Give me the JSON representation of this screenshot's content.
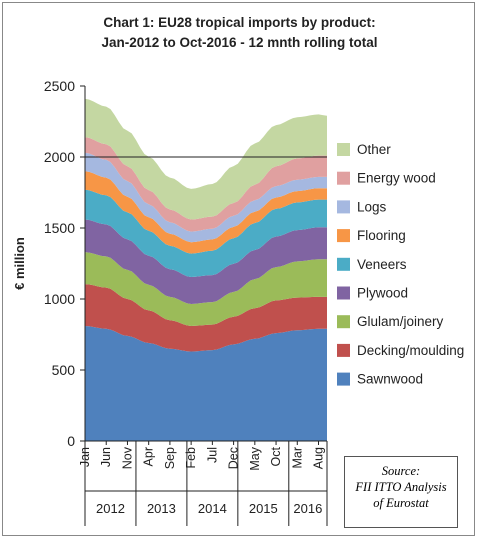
{
  "chart_data": {
    "type": "area",
    "stacked": true,
    "title_lines": [
      "Chart 1: EU28 tropical imports by product:",
      "Jan-2012 to Oct-2016 - 12 mnth rolling total"
    ],
    "ylabel": "€ million",
    "ylim": [
      0,
      2500
    ],
    "yticks": [
      0,
      500,
      1000,
      1500,
      2000,
      2500
    ],
    "x_tick_labels": [
      "Jan",
      "Jun",
      "Nov",
      "Apr",
      "Sep",
      "Feb",
      "Jul",
      "Dec",
      "May",
      "Oct",
      "Mar",
      "Aug"
    ],
    "x_tick_index": [
      0,
      5,
      10,
      15,
      20,
      25,
      30,
      35,
      40,
      45,
      50,
      55
    ],
    "year_groups": [
      {
        "label": "2012",
        "start": 0,
        "end": 12
      },
      {
        "label": "2013",
        "start": 12,
        "end": 24
      },
      {
        "label": "2014",
        "start": 24,
        "end": 36
      },
      {
        "label": "2015",
        "start": 36,
        "end": 48
      },
      {
        "label": "2016",
        "start": 48,
        "end": 58
      }
    ],
    "legend_position": "right",
    "colors": {
      "Sawnwood": "#4f81bd",
      "Decking/moulding": "#c0504d",
      "Glulam/joinery": "#9bbb59",
      "Plywood": "#8064a2",
      "Veneers": "#4bacc6",
      "Flooring": "#f79646",
      "Logs": "#a5b8e0",
      "Energy wood": "#e0a0a0",
      "Other": "#c4d7a2"
    },
    "series": [
      {
        "name": "Sawnwood",
        "knots": [
          [
            0,
            810
          ],
          [
            5,
            790
          ],
          [
            10,
            740
          ],
          [
            15,
            690
          ],
          [
            20,
            650
          ],
          [
            25,
            630
          ],
          [
            30,
            640
          ],
          [
            35,
            680
          ],
          [
            40,
            720
          ],
          [
            45,
            760
          ],
          [
            50,
            780
          ],
          [
            55,
            790
          ],
          [
            57,
            790
          ]
        ]
      },
      {
        "name": "Decking/moulding",
        "knots": [
          [
            0,
            295
          ],
          [
            5,
            290
          ],
          [
            10,
            260
          ],
          [
            15,
            230
          ],
          [
            20,
            200
          ],
          [
            25,
            180
          ],
          [
            30,
            180
          ],
          [
            35,
            195
          ],
          [
            40,
            215
          ],
          [
            45,
            230
          ],
          [
            50,
            230
          ],
          [
            55,
            225
          ],
          [
            57,
            225
          ]
        ]
      },
      {
        "name": "Glulam/joinery",
        "knots": [
          [
            0,
            225
          ],
          [
            5,
            220
          ],
          [
            10,
            205
          ],
          [
            15,
            180
          ],
          [
            20,
            165
          ],
          [
            25,
            155
          ],
          [
            30,
            158
          ],
          [
            35,
            175
          ],
          [
            40,
            205
          ],
          [
            45,
            235
          ],
          [
            50,
            255
          ],
          [
            55,
            265
          ],
          [
            57,
            265
          ]
        ]
      },
      {
        "name": "Plywood",
        "knots": [
          [
            0,
            230
          ],
          [
            5,
            225
          ],
          [
            10,
            215
          ],
          [
            15,
            205
          ],
          [
            20,
            195
          ],
          [
            25,
            190
          ],
          [
            30,
            190
          ],
          [
            35,
            198
          ],
          [
            40,
            205
          ],
          [
            45,
            215
          ],
          [
            50,
            220
          ],
          [
            55,
            225
          ],
          [
            57,
            225
          ]
        ]
      },
      {
        "name": "Veneers",
        "knots": [
          [
            0,
            210
          ],
          [
            5,
            205
          ],
          [
            10,
            190
          ],
          [
            15,
            175
          ],
          [
            20,
            165
          ],
          [
            25,
            165
          ],
          [
            30,
            172
          ],
          [
            35,
            180
          ],
          [
            40,
            190
          ],
          [
            45,
            195
          ],
          [
            50,
            195
          ],
          [
            55,
            195
          ],
          [
            57,
            195
          ]
        ]
      },
      {
        "name": "Flooring",
        "knots": [
          [
            0,
            130
          ],
          [
            5,
            125
          ],
          [
            10,
            110
          ],
          [
            15,
            95
          ],
          [
            20,
            85
          ],
          [
            25,
            80
          ],
          [
            30,
            80
          ],
          [
            35,
            80
          ],
          [
            40,
            80
          ],
          [
            45,
            80
          ],
          [
            50,
            80
          ],
          [
            55,
            80
          ],
          [
            57,
            80
          ]
        ]
      },
      {
        "name": "Logs",
        "knots": [
          [
            0,
            130
          ],
          [
            5,
            125
          ],
          [
            10,
            110
          ],
          [
            15,
            92
          ],
          [
            20,
            80
          ],
          [
            25,
            75
          ],
          [
            30,
            75
          ],
          [
            35,
            78
          ],
          [
            40,
            80
          ],
          [
            45,
            80
          ],
          [
            50,
            80
          ],
          [
            55,
            80
          ],
          [
            57,
            80
          ]
        ]
      },
      {
        "name": "Energy wood",
        "knots": [
          [
            0,
            110
          ],
          [
            5,
            110
          ],
          [
            10,
            105
          ],
          [
            15,
            100
          ],
          [
            20,
            90
          ],
          [
            25,
            85
          ],
          [
            30,
            85
          ],
          [
            35,
            90
          ],
          [
            40,
            110
          ],
          [
            45,
            140
          ],
          [
            50,
            150
          ],
          [
            55,
            150
          ],
          [
            57,
            150
          ]
        ]
      },
      {
        "name": "Other",
        "knots": [
          [
            0,
            270
          ],
          [
            5,
            265
          ],
          [
            10,
            250
          ],
          [
            15,
            235
          ],
          [
            20,
            225
          ],
          [
            25,
            215
          ],
          [
            30,
            230
          ],
          [
            35,
            260
          ],
          [
            40,
            290
          ],
          [
            45,
            290
          ],
          [
            50,
            290
          ],
          [
            55,
            290
          ],
          [
            57,
            280
          ]
        ]
      }
    ],
    "reference_line": 2000
  },
  "source_lines": [
    "Source:",
    "FII ITTO Analysis",
    "of Eurostat"
  ]
}
